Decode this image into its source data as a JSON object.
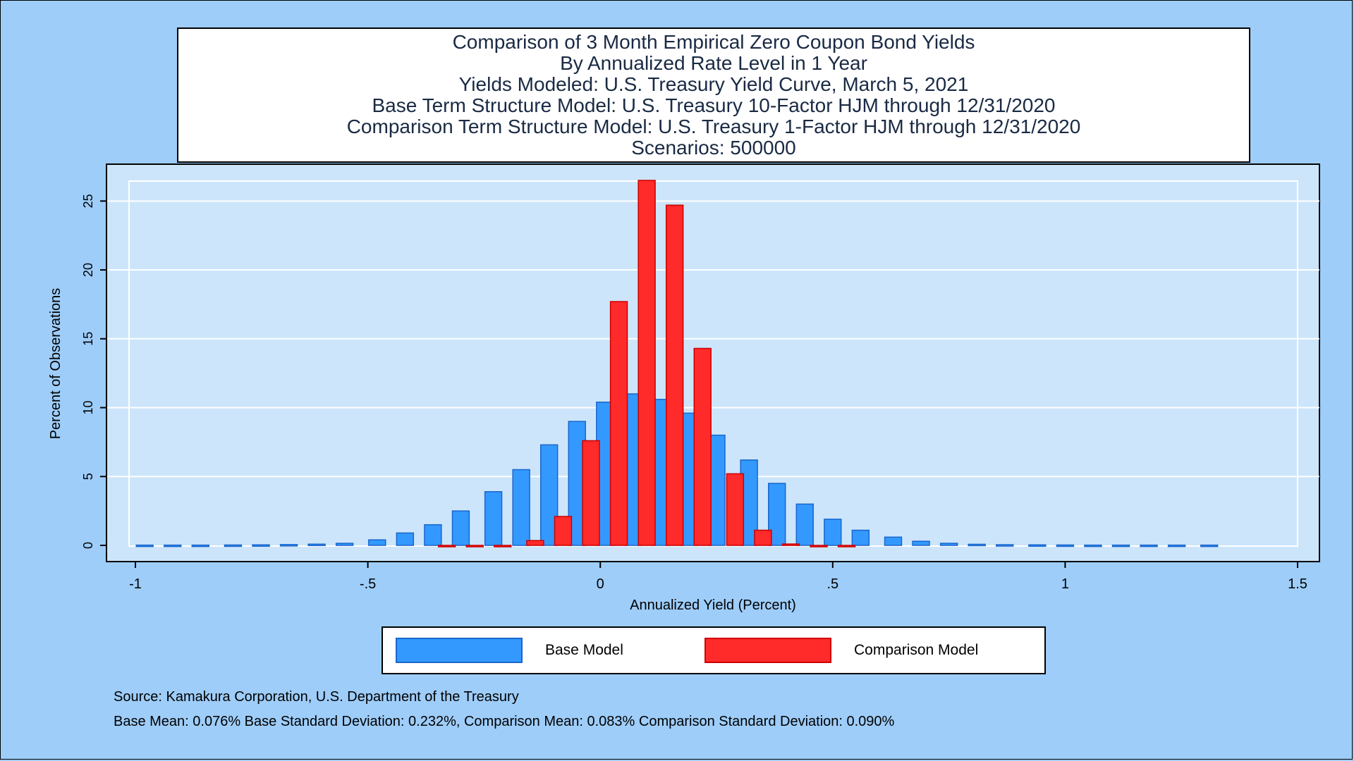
{
  "title": {
    "lines": [
      "Comparison of 3 Month Empirical Zero Coupon Bond Yields",
      "By Annualized Rate Level in 1 Year",
      "Yields Modeled: U.S. Treasury Yield Curve, March 5, 2021",
      "Base Term Structure Model: U.S. Treasury 10-Factor HJM through 12/31/2020",
      "Comparison Term Structure Model: U.S. Treasury 1-Factor HJM through 12/31/2020",
      "Scenarios: 500000"
    ]
  },
  "colors": {
    "page_bg": "#9ecdf9",
    "plot_bg": "#cce5fb",
    "grid": "#ffffff",
    "base_fill": "#3399ff",
    "base_edge": "#1a66cc",
    "comparison_fill": "#ff2a2a",
    "comparison_edge": "#cc0000"
  },
  "chart_data": {
    "type": "bar",
    "xlabel": "Annualized Yield (Percent)",
    "ylabel": "Percent of Observations",
    "xlim": [
      -1.0,
      1.5
    ],
    "ylim": [
      0,
      26.5
    ],
    "xticks": [
      -1,
      -0.5,
      0,
      0.5,
      1,
      1.5
    ],
    "xtick_labels": [
      "-1",
      "-.5",
      "0",
      ".5",
      "1",
      "1.5"
    ],
    "yticks": [
      0,
      5,
      10,
      15,
      20,
      25
    ],
    "ytick_labels": [
      "0",
      "5",
      "10",
      "15",
      "20",
      "25"
    ],
    "grid": true,
    "legend_position": "bottom",
    "bin_width": 0.0625,
    "series": [
      {
        "name": "Base Model",
        "color": "#3399ff",
        "x": [
          -0.98,
          -0.92,
          -0.86,
          -0.79,
          -0.73,
          -0.67,
          -0.61,
          -0.55,
          -0.48,
          -0.42,
          -0.36,
          -0.3,
          -0.23,
          -0.17,
          -0.11,
          -0.05,
          0.01,
          0.07,
          0.13,
          0.19,
          0.25,
          0.32,
          0.38,
          0.44,
          0.5,
          0.56,
          0.63,
          0.69,
          0.75,
          0.81,
          0.87,
          0.94,
          1.0,
          1.06,
          1.12,
          1.18,
          1.24,
          1.31
        ],
        "values": [
          0.02,
          0.02,
          0.02,
          0.03,
          0.04,
          0.06,
          0.09,
          0.15,
          0.4,
          0.9,
          1.5,
          2.5,
          3.9,
          5.5,
          7.3,
          9.0,
          10.4,
          11.0,
          10.6,
          9.6,
          8.0,
          6.2,
          4.5,
          3.0,
          1.9,
          1.1,
          0.6,
          0.3,
          0.15,
          0.08,
          0.05,
          0.04,
          0.03,
          0.02,
          0.02,
          0.02,
          0.02,
          0.02
        ]
      },
      {
        "name": "Comparison Model",
        "color": "#ff2a2a",
        "x": [
          -0.33,
          -0.27,
          -0.21,
          -0.14,
          -0.08,
          -0.02,
          0.04,
          0.1,
          0.16,
          0.22,
          0.29,
          0.35,
          0.41,
          0.47,
          0.53
        ],
        "values": [
          -0.05,
          -0.05,
          -0.03,
          0.35,
          2.1,
          7.6,
          17.7,
          26.5,
          24.7,
          14.3,
          5.2,
          1.1,
          0.1,
          -0.06,
          -0.06
        ]
      }
    ]
  },
  "legend": {
    "base_label": "Base Model",
    "comparison_label": "Comparison Model"
  },
  "notes": {
    "source": "Source: Kamakura Corporation, U.S. Department of the Treasury",
    "stats": "Base Mean:  0.076% Base Standard Deviation:  0.232%, Comparison Mean:  0.083% Comparison Standard Deviation:  0.090%"
  }
}
